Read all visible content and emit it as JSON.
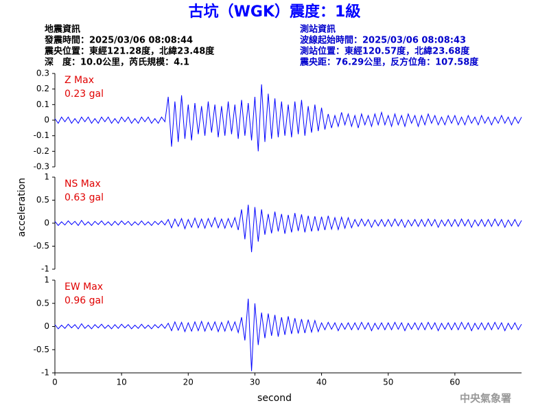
{
  "title": "古坑（WGK）震度：1級",
  "header": {
    "left": [
      "地震資訊",
      "發震時間：2025/03/06 08:08:44",
      "震央位置：東經121.28度，北緯23.48度",
      "深　度：10.0公里，芮氏規模：4.1"
    ],
    "right": [
      "測站資訊",
      "波線起始時間：2025/03/06 08:08:43",
      "測站位置：東經120.57度，北緯23.68度",
      "震央距：76.29公里，反方位角：107.58度"
    ]
  },
  "xlabel": "second",
  "ylabel": "acceleration",
  "footer": "中央氣象署",
  "chart_data": [
    {
      "type": "line",
      "annotations": [
        "Z Max",
        "0.23 gal"
      ],
      "xlim": [
        0,
        70
      ],
      "ylim": [
        -0.3,
        0.3
      ],
      "yticks": [
        0.3,
        0.2,
        0.1,
        0,
        -0.1,
        -0.2,
        -0.3
      ],
      "x": [
        0,
        0.5,
        1,
        1.5,
        2,
        2.5,
        3,
        3.5,
        4,
        4.5,
        5,
        5.5,
        6,
        6.5,
        7,
        7.5,
        8,
        8.5,
        9,
        9.5,
        10,
        10.5,
        11,
        11.5,
        12,
        12.5,
        13,
        13.5,
        14,
        14.5,
        15,
        15.5,
        16,
        16.5,
        17,
        17.5,
        18,
        18.5,
        19,
        19.5,
        20,
        20.5,
        21,
        21.5,
        22,
        22.5,
        23,
        23.5,
        24,
        24.5,
        25,
        25.5,
        26,
        26.5,
        27,
        27.5,
        28,
        28.5,
        29,
        29.5,
        30,
        30.5,
        31,
        31.5,
        32,
        32.5,
        33,
        33.5,
        34,
        34.5,
        35,
        35.5,
        36,
        36.5,
        37,
        37.5,
        38,
        38.5,
        39,
        39.5,
        40,
        40.5,
        41,
        41.5,
        42,
        42.5,
        43,
        43.5,
        44,
        44.5,
        45,
        45.5,
        46,
        46.5,
        47,
        47.5,
        48,
        48.5,
        49,
        49.5,
        50,
        50.5,
        51,
        51.5,
        52,
        52.5,
        53,
        53.5,
        54,
        54.5,
        55,
        55.5,
        56,
        56.5,
        57,
        57.5,
        58,
        58.5,
        59,
        59.5,
        60,
        60.5,
        61,
        61.5,
        62,
        62.5,
        63,
        63.5,
        64,
        64.5,
        65,
        65.5,
        66,
        66.5,
        67,
        67.5,
        68,
        68.5,
        69,
        69.5,
        70
      ],
      "series": [
        {
          "color": "#0000ff",
          "values": [
            0.01,
            -0.02,
            0.02,
            -0.01,
            0.02,
            -0.02,
            0.01,
            -0.02,
            0.02,
            -0.01,
            0.02,
            -0.02,
            0.01,
            -0.02,
            0.02,
            -0.01,
            0.02,
            -0.02,
            0.01,
            -0.02,
            0.02,
            -0.01,
            0.02,
            -0.02,
            0.01,
            -0.02,
            0.02,
            -0.01,
            0.02,
            -0.02,
            0.01,
            -0.02,
            0.02,
            -0.01,
            0.15,
            -0.17,
            0.12,
            -0.14,
            0.16,
            -0.12,
            0.1,
            -0.13,
            0.11,
            -0.09,
            0.09,
            -0.1,
            0.12,
            -0.08,
            0.1,
            -0.11,
            0.09,
            -0.1,
            0.12,
            -0.09,
            0.1,
            -0.12,
            0.13,
            -0.1,
            0.11,
            -0.13,
            0.15,
            -0.2,
            0.23,
            -0.14,
            0.17,
            -0.12,
            0.14,
            -0.11,
            0.12,
            -0.1,
            0.1,
            -0.11,
            0.12,
            -0.09,
            0.13,
            -0.1,
            0.09,
            -0.08,
            0.1,
            -0.07,
            0.08,
            -0.06,
            0.04,
            -0.05,
            0.03,
            -0.04,
            0.05,
            -0.03,
            0.04,
            -0.04,
            0.03,
            -0.05,
            0.04,
            -0.03,
            0.03,
            -0.04,
            0.04,
            -0.03,
            0.05,
            -0.03,
            0.03,
            -0.04,
            0.04,
            -0.03,
            0.03,
            -0.04,
            0.04,
            -0.02,
            0.03,
            -0.04,
            0.03,
            -0.03,
            0.04,
            -0.02,
            0.03,
            -0.03,
            0.02,
            -0.03,
            0.03,
            -0.02,
            0.03,
            -0.03,
            0.02,
            -0.03,
            0.03,
            -0.02,
            0.02,
            -0.03,
            0.03,
            -0.02,
            0.02,
            -0.03,
            0.02,
            -0.02,
            0.03,
            -0.02,
            0.02,
            -0.03,
            0.02,
            -0.02,
            0.02
          ]
        }
      ]
    },
    {
      "type": "line",
      "annotations": [
        "NS Max",
        "0.63 gal"
      ],
      "xlim": [
        0,
        70
      ],
      "ylim": [
        -1,
        1
      ],
      "yticks": [
        1,
        0.5,
        0,
        -0.5,
        -1
      ],
      "x": [
        0,
        0.5,
        1,
        1.5,
        2,
        2.5,
        3,
        3.5,
        4,
        4.5,
        5,
        5.5,
        6,
        6.5,
        7,
        7.5,
        8,
        8.5,
        9,
        9.5,
        10,
        10.5,
        11,
        11.5,
        12,
        12.5,
        13,
        13.5,
        14,
        14.5,
        15,
        15.5,
        16,
        16.5,
        17,
        17.5,
        18,
        18.5,
        19,
        19.5,
        20,
        20.5,
        21,
        21.5,
        22,
        22.5,
        23,
        23.5,
        24,
        24.5,
        25,
        25.5,
        26,
        26.5,
        27,
        27.5,
        28,
        28.5,
        29,
        29.5,
        30,
        30.5,
        31,
        31.5,
        32,
        32.5,
        33,
        33.5,
        34,
        34.5,
        35,
        35.5,
        36,
        36.5,
        37,
        37.5,
        38,
        38.5,
        39,
        39.5,
        40,
        40.5,
        41,
        41.5,
        42,
        42.5,
        43,
        43.5,
        44,
        44.5,
        45,
        45.5,
        46,
        46.5,
        47,
        47.5,
        48,
        48.5,
        49,
        49.5,
        50,
        50.5,
        51,
        51.5,
        52,
        52.5,
        53,
        53.5,
        54,
        54.5,
        55,
        55.5,
        56,
        56.5,
        57,
        57.5,
        58,
        58.5,
        59,
        59.5,
        60,
        60.5,
        61,
        61.5,
        62,
        62.5,
        63,
        63.5,
        64,
        64.5,
        65,
        65.5,
        66,
        66.5,
        67,
        67.5,
        68,
        68.5,
        69,
        69.5,
        70
      ],
      "series": [
        {
          "color": "#0000ff",
          "values": [
            0.04,
            -0.05,
            0.03,
            -0.04,
            0.05,
            -0.03,
            0.04,
            -0.05,
            0.06,
            -0.04,
            0.03,
            -0.05,
            0.04,
            -0.03,
            0.05,
            -0.04,
            0.03,
            -0.05,
            0.04,
            -0.04,
            0.05,
            -0.03,
            0.04,
            -0.05,
            0.03,
            -0.04,
            0.05,
            -0.04,
            0.03,
            -0.05,
            0.04,
            -0.03,
            0.05,
            -0.04,
            0.08,
            -0.1,
            0.09,
            -0.07,
            0.1,
            -0.12,
            0.08,
            -0.09,
            0.11,
            -0.1,
            0.09,
            -0.11,
            0.1,
            -0.08,
            0.12,
            -0.1,
            0.09,
            -0.11,
            0.1,
            -0.09,
            0.12,
            -0.15,
            0.3,
            -0.35,
            0.4,
            -0.63,
            0.35,
            -0.4,
            0.3,
            -0.25,
            0.2,
            -0.22,
            0.25,
            -0.18,
            0.2,
            -0.23,
            0.18,
            -0.2,
            0.22,
            -0.17,
            0.19,
            -0.2,
            0.16,
            -0.18,
            0.15,
            -0.17,
            0.14,
            -0.15,
            0.16,
            -0.13,
            0.12,
            -0.14,
            0.13,
            -0.11,
            0.12,
            -0.1,
            0.08,
            -0.07,
            0.09,
            -0.06,
            0.08,
            -0.09,
            0.07,
            -0.06,
            0.08,
            -0.07,
            0.08,
            -0.07,
            0.09,
            -0.06,
            0.08,
            -0.09,
            0.07,
            -0.06,
            0.08,
            -0.07,
            0.08,
            -0.07,
            0.09,
            -0.06,
            0.08,
            -0.09,
            0.07,
            -0.06,
            0.08,
            -0.07,
            0.08,
            -0.07,
            0.09,
            -0.06,
            0.08,
            -0.09,
            0.07,
            -0.06,
            0.08,
            -0.07,
            0.08,
            -0.07,
            0.09,
            -0.06,
            0.08,
            -0.09,
            0.07,
            -0.06,
            0.08,
            -0.07,
            0.06
          ]
        }
      ]
    },
    {
      "type": "line",
      "annotations": [
        "EW Max",
        "0.96 gal"
      ],
      "xlim": [
        0,
        70
      ],
      "ylim": [
        -1,
        1
      ],
      "yticks": [
        1,
        0.5,
        0,
        -0.5,
        -1
      ],
      "xticks": [
        0,
        10,
        20,
        30,
        40,
        50,
        60
      ],
      "x": [
        0,
        0.5,
        1,
        1.5,
        2,
        2.5,
        3,
        3.5,
        4,
        4.5,
        5,
        5.5,
        6,
        6.5,
        7,
        7.5,
        8,
        8.5,
        9,
        9.5,
        10,
        10.5,
        11,
        11.5,
        12,
        12.5,
        13,
        13.5,
        14,
        14.5,
        15,
        15.5,
        16,
        16.5,
        17,
        17.5,
        18,
        18.5,
        19,
        19.5,
        20,
        20.5,
        21,
        21.5,
        22,
        22.5,
        23,
        23.5,
        24,
        24.5,
        25,
        25.5,
        26,
        26.5,
        27,
        27.5,
        28,
        28.5,
        29,
        29.5,
        30,
        30.5,
        31,
        31.5,
        32,
        32.5,
        33,
        33.5,
        34,
        34.5,
        35,
        35.5,
        36,
        36.5,
        37,
        37.5,
        38,
        38.5,
        39,
        39.5,
        40,
        40.5,
        41,
        41.5,
        42,
        42.5,
        43,
        43.5,
        44,
        44.5,
        45,
        45.5,
        46,
        46.5,
        47,
        47.5,
        48,
        48.5,
        49,
        49.5,
        50,
        50.5,
        51,
        51.5,
        52,
        52.5,
        53,
        53.5,
        54,
        54.5,
        55,
        55.5,
        56,
        56.5,
        57,
        57.5,
        58,
        58.5,
        59,
        59.5,
        60,
        60.5,
        61,
        61.5,
        62,
        62.5,
        63,
        63.5,
        64,
        64.5,
        65,
        65.5,
        66,
        66.5,
        67,
        67.5,
        68,
        68.5,
        69,
        69.5,
        70
      ],
      "series": [
        {
          "color": "#0000ff",
          "values": [
            0.04,
            -0.05,
            0.03,
            -0.04,
            0.05,
            -0.03,
            0.04,
            -0.05,
            0.06,
            -0.04,
            0.03,
            -0.05,
            0.04,
            -0.03,
            0.05,
            -0.04,
            0.03,
            -0.05,
            0.04,
            -0.04,
            0.05,
            -0.03,
            0.04,
            -0.05,
            0.03,
            -0.04,
            0.05,
            -0.04,
            0.03,
            -0.05,
            0.04,
            -0.03,
            0.05,
            -0.04,
            0.07,
            -0.09,
            0.1,
            -0.08,
            0.09,
            -0.11,
            0.08,
            -0.1,
            0.1,
            -0.09,
            0.11,
            -0.1,
            0.09,
            -0.08,
            0.1,
            -0.11,
            0.09,
            -0.1,
            0.12,
            -0.09,
            0.1,
            -0.13,
            0.2,
            -0.3,
            0.6,
            -0.96,
            0.5,
            -0.4,
            0.3,
            -0.25,
            0.28,
            -0.2,
            0.25,
            -0.22,
            0.2,
            -0.18,
            0.22,
            -0.16,
            0.18,
            -0.15,
            0.16,
            -0.14,
            0.15,
            -0.12,
            0.13,
            -0.11,
            0.08,
            -0.07,
            0.09,
            -0.06,
            0.08,
            -0.09,
            0.07,
            -0.06,
            0.08,
            -0.07,
            0.08,
            -0.07,
            0.09,
            -0.06,
            0.08,
            -0.09,
            0.07,
            -0.06,
            0.08,
            -0.07,
            0.08,
            -0.07,
            0.09,
            -0.06,
            0.08,
            -0.09,
            0.07,
            -0.06,
            0.08,
            -0.07,
            0.08,
            -0.07,
            0.09,
            -0.06,
            0.08,
            -0.09,
            0.07,
            -0.06,
            0.08,
            -0.07,
            0.08,
            -0.07,
            0.09,
            -0.06,
            0.08,
            -0.09,
            0.07,
            -0.06,
            0.08,
            -0.07,
            0.08,
            -0.07,
            0.09,
            -0.06,
            0.08,
            -0.09,
            0.07,
            -0.06,
            0.08,
            -0.07,
            0.05
          ]
        }
      ]
    }
  ]
}
